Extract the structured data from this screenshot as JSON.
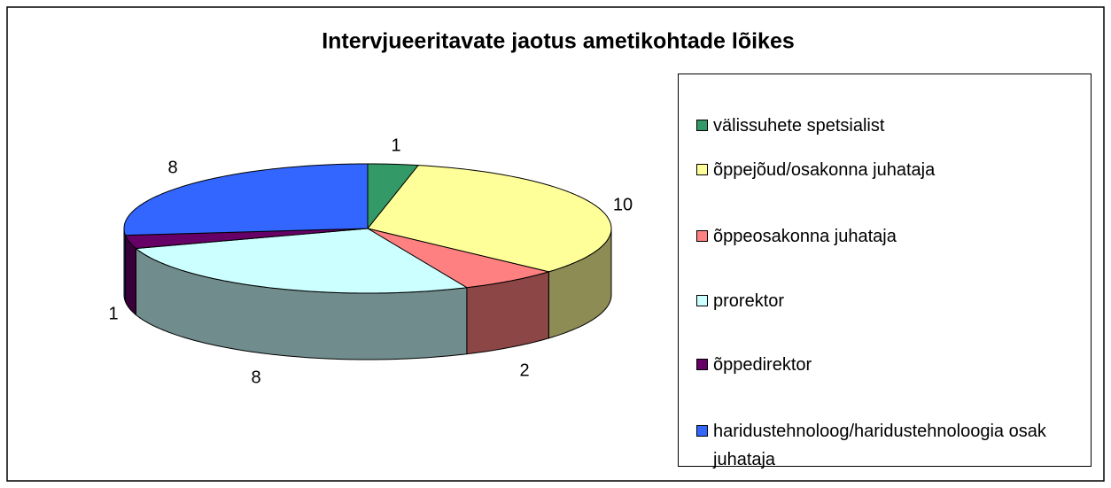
{
  "chart_data": {
    "type": "pie3d",
    "title": "Intervjueeritavate jaotus ametikohtade lõikes",
    "categories": [
      "välissuhete spetsialist",
      "õppejõud/osakonna juhataja",
      "õppeosakonna juhataja",
      "prorektor",
      "õppedirektor",
      "haridustehnoloog/haridustehnoloogia osak juhataja"
    ],
    "values": [
      1,
      10,
      2,
      8,
      1,
      8
    ],
    "colors": [
      "#339966",
      "#ffff99",
      "#ff8080",
      "#ccffff",
      "#660066",
      "#3366ff"
    ],
    "legend": "right"
  }
}
